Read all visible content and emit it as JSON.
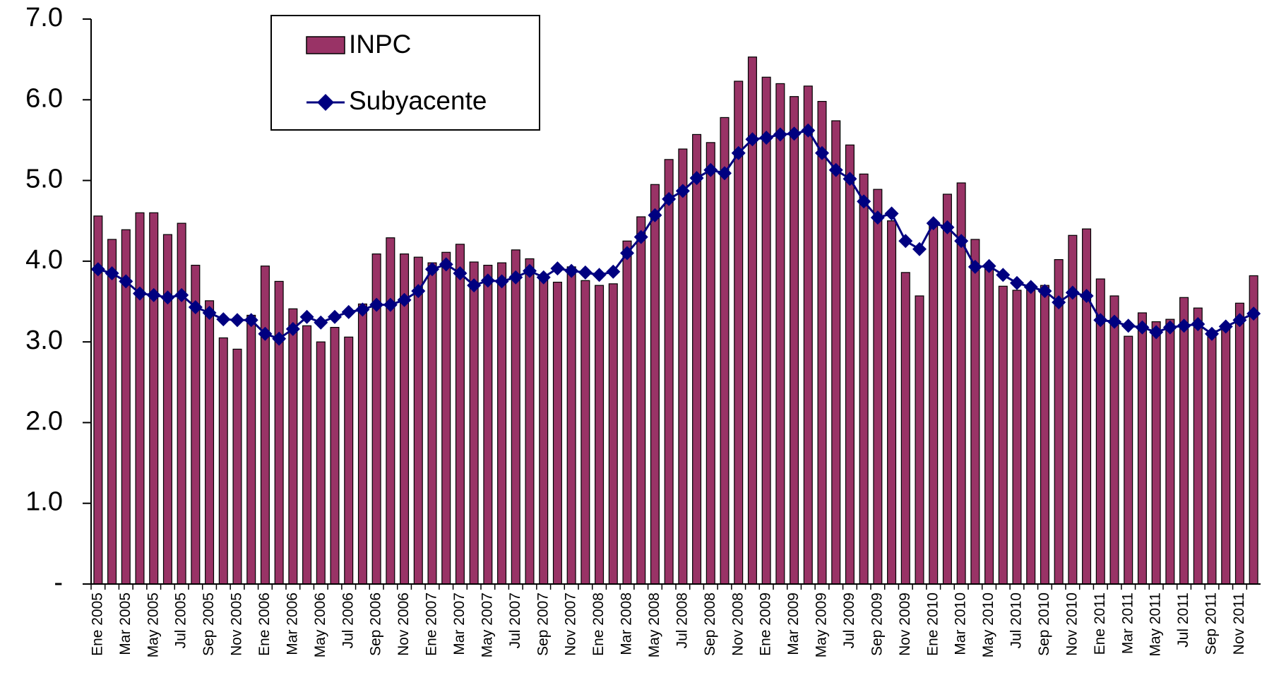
{
  "chart_data": {
    "type": "bar_line",
    "categories": [
      "Ene 2005",
      null,
      "Mar 2005",
      null,
      "May 2005",
      null,
      "Jul 2005",
      null,
      "Sep 2005",
      null,
      "Nov 2005",
      null,
      "Ene 2006",
      null,
      "Mar 2006",
      null,
      "May 2006",
      null,
      "Jul 2006",
      null,
      "Sep 2006",
      null,
      "Nov 2006",
      null,
      "Ene 2007",
      null,
      "Mar 2007",
      null,
      "May 2007",
      null,
      "Jul 2007",
      null,
      "Sep 2007",
      null,
      "Nov 2007",
      null,
      "Ene 2008",
      null,
      "Mar 2008",
      null,
      "May 2008",
      null,
      "Jul 2008",
      null,
      "Sep 2008",
      null,
      "Nov 2008",
      null,
      "Ene 2009",
      null,
      "Mar 2009",
      null,
      "May 2009",
      null,
      "Jul 2009",
      null,
      "Sep 2009",
      null,
      "Nov 2009",
      null,
      "Ene 2010",
      null,
      "Mar 2010",
      null,
      "May 2010",
      null,
      "Jul 2010",
      null,
      "Sep 2010",
      null,
      "Nov 2010",
      null,
      "Ene 2011",
      null,
      "Mar 2011",
      null,
      "May 2011",
      null,
      "Jul 2011",
      null,
      "Sep 2011",
      null,
      "Nov 2011",
      null
    ],
    "series": [
      {
        "name": "INPC",
        "kind": "bar",
        "color": "#993366",
        "values": [
          4.56,
          4.27,
          4.39,
          4.6,
          4.6,
          4.33,
          4.47,
          3.95,
          3.51,
          3.05,
          2.91,
          3.33,
          3.94,
          3.75,
          3.41,
          3.2,
          3.0,
          3.18,
          3.06,
          3.47,
          4.09,
          4.29,
          4.09,
          4.05,
          3.98,
          4.11,
          4.21,
          3.99,
          3.95,
          3.98,
          4.14,
          4.03,
          3.79,
          3.74,
          3.93,
          3.76,
          3.7,
          3.72,
          4.25,
          4.55,
          4.95,
          5.26,
          5.39,
          5.57,
          5.47,
          5.78,
          6.23,
          6.53,
          6.28,
          6.2,
          6.04,
          6.17,
          5.98,
          5.74,
          5.44,
          5.08,
          4.89,
          4.5,
          3.86,
          3.57,
          4.46,
          4.83,
          4.97,
          4.27,
          3.92,
          3.69,
          3.64,
          3.68,
          3.7,
          4.02,
          4.32,
          4.4,
          3.78,
          3.57,
          3.07,
          3.36,
          3.25,
          3.28,
          3.55,
          3.42,
          3.14,
          3.2,
          3.48,
          3.82
        ]
      },
      {
        "name": "Subyacente",
        "kind": "line",
        "color": "#000080",
        "values": [
          3.9,
          3.85,
          3.75,
          3.6,
          3.58,
          3.55,
          3.58,
          3.43,
          3.36,
          3.28,
          3.27,
          3.27,
          3.1,
          3.04,
          3.16,
          3.31,
          3.24,
          3.31,
          3.37,
          3.4,
          3.46,
          3.46,
          3.52,
          3.63,
          3.9,
          3.96,
          3.85,
          3.7,
          3.76,
          3.75,
          3.8,
          3.88,
          3.8,
          3.91,
          3.88,
          3.86,
          3.83,
          3.87,
          4.1,
          4.3,
          4.57,
          4.77,
          4.87,
          5.03,
          5.13,
          5.09,
          5.34,
          5.51,
          5.53,
          5.57,
          5.58,
          5.62,
          5.34,
          5.13,
          5.02,
          4.74,
          4.54,
          4.59,
          4.25,
          4.15,
          4.47,
          4.42,
          4.25,
          3.93,
          3.94,
          3.83,
          3.73,
          3.68,
          3.63,
          3.49,
          3.61,
          3.57,
          3.27,
          3.25,
          3.2,
          3.18,
          3.12,
          3.18,
          3.2,
          3.22,
          3.1,
          3.19,
          3.27,
          3.35
        ]
      }
    ],
    "ylim": [
      0,
      7
    ],
    "yticks": [
      {
        "value": 0,
        "label": "-"
      },
      {
        "value": 1,
        "label": "1.0"
      },
      {
        "value": 2,
        "label": "2.0"
      },
      {
        "value": 3,
        "label": "3.0"
      },
      {
        "value": 4,
        "label": "4.0"
      },
      {
        "value": 5,
        "label": "5.0"
      },
      {
        "value": 6,
        "label": "6.0"
      },
      {
        "value": 7,
        "label": "7.0"
      }
    ],
    "grid": false,
    "legend": "top-left"
  }
}
